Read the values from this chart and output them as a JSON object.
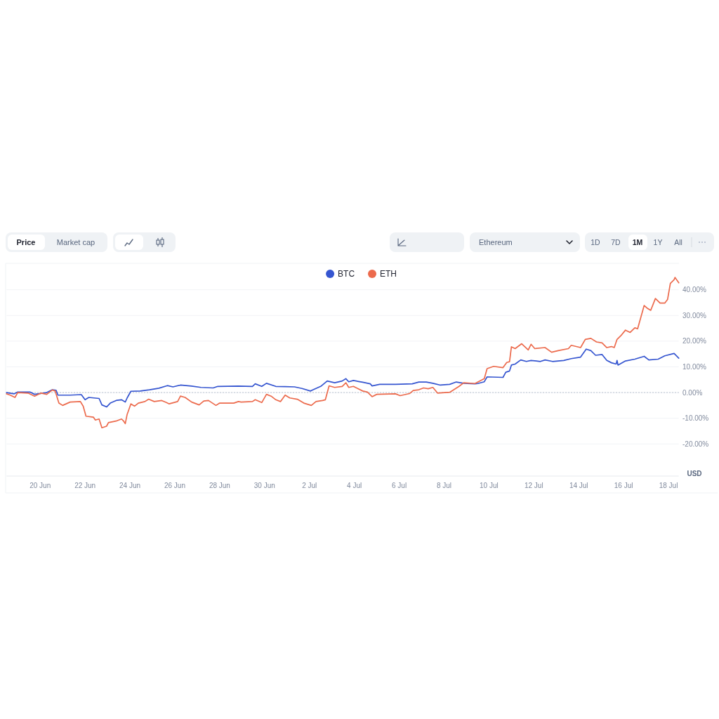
{
  "chart_data": {
    "type": "line",
    "xlim": [
      "--06-18T12:00",
      "--07-18T11:00"
    ],
    "xticks": [
      {
        "value": "--06-20",
        "label": "20 Jun"
      },
      {
        "value": "--06-22",
        "label": "22 Jun"
      },
      {
        "value": "--06-24",
        "label": "24 Jun"
      },
      {
        "value": "--06-26",
        "label": "26 Jun"
      },
      {
        "value": "--06-28",
        "label": "28 Jun"
      },
      {
        "value": "--06-30",
        "label": "30 Jun"
      },
      {
        "value": "--07-02",
        "label": "2 Jul"
      },
      {
        "value": "--07-04",
        "label": "4 Jul"
      },
      {
        "value": "--07-06",
        "label": "6 Jul"
      },
      {
        "value": "--07-08",
        "label": "8 Jul"
      },
      {
        "value": "--07-10",
        "label": "10 Jul"
      },
      {
        "value": "--07-12",
        "label": "12 Jul"
      },
      {
        "value": "--07-14",
        "label": "14 Jul"
      },
      {
        "value": "--07-16",
        "label": "16 Jul"
      },
      {
        "value": "--07-18",
        "label": "18 Jul"
      }
    ],
    "ylim": [
      -32.5,
      50.3
    ],
    "yticks": [
      {
        "value": -20,
        "label": "-20.00%"
      },
      {
        "value": -10,
        "label": "-10.00%"
      },
      {
        "value": 0,
        "label": "0.00%"
      },
      {
        "value": 10,
        "label": "10.00%"
      },
      {
        "value": 20,
        "label": "20.00%"
      },
      {
        "value": 30,
        "label": "30.00%"
      },
      {
        "value": 40,
        "label": "40.00%"
      }
    ],
    "grid": "y",
    "legend": "top",
    "ref_lines": [
      {
        "axis": "y",
        "value": 0,
        "line_style": "dotted",
        "color": "#a6b0c3"
      }
    ],
    "annotations": [
      "Price",
      "Market cap",
      "Ethereum",
      "1D",
      "7D",
      "1M",
      "1Y",
      "All",
      "USD"
    ],
    "series": [
      {
        "name": "BTC",
        "color": "#3555d0",
        "x": [
          "--06-18T12:00",
          "--06-18T20:00",
          "--06-19T00:00",
          "--06-19T13:00",
          "--06-19T18:00",
          "--06-20T07:00",
          "--06-20T13:00",
          "--06-20T17:00",
          "--06-20T19:00",
          "--06-21T08:00",
          "--06-21T20:00",
          "--06-22T00:00",
          "--06-22T04:00",
          "--06-22T15:00",
          "--06-22T18:00",
          "--06-22T23:00",
          "--06-23T03:00",
          "--06-23T10:00",
          "--06-23T15:00",
          "--06-23T19:00",
          "--06-23T21:00",
          "--06-24T01:00",
          "--06-24T11:00",
          "--06-24T21:00",
          "--06-25T07:00",
          "--06-25T16:00",
          "--06-25T22:00",
          "--06-26T06:00",
          "--06-26T18:00",
          "--06-27T04:00",
          "--06-27T17:00",
          "--06-27T22:00",
          "--06-28T20:00",
          "--06-29T11:00",
          "--06-29T14:00",
          "--06-29T21:00",
          "--06-30T02:00",
          "--06-30T12:00",
          "--06-30T22:00",
          "--07-01T08:00",
          "--07-01T16:00",
          "--07-02T01:00",
          "--07-02T04:00",
          "--07-02T12:00",
          "--07-02T19:00",
          "--07-03T03:00",
          "--07-03T11:00",
          "--07-03T15:00",
          "--07-03T18:00",
          "--07-03T23:00",
          "--07-04T09:00",
          "--07-04T17:00",
          "--07-04T19:00",
          "--07-05T03:00",
          "--07-05T20:00",
          "--07-06T14:00",
          "--07-06T21:00",
          "--07-07T05:00",
          "--07-07T12:00",
          "--07-07T20:00",
          "--07-08T06:00",
          "--07-08T13:00",
          "--07-08T21:00",
          "--07-09T09:00",
          "--07-09T12:00",
          "--07-09T19:00",
          "--07-09T22:00",
          "--07-10T15:00",
          "--07-10T18:00",
          "--07-10T22:00",
          "--07-11T00:00",
          "--07-11T04:00",
          "--07-11T10:00",
          "--07-11T16:00",
          "--07-11T21:00",
          "--07-12T07:00",
          "--07-12T12:00",
          "--07-12T20:00",
          "--07-13T08:00",
          "--07-13T16:00",
          "--07-14T02:00",
          "--07-14T08:00",
          "--07-14T13:00",
          "--07-14T18:00",
          "--07-15T01:00",
          "--07-15T06:00",
          "--07-15T11:00",
          "--07-15T16:00",
          "--07-15T17:00",
          "--07-15T18:00",
          "--07-16T02:00",
          "--07-16T12:00",
          "--07-16T22:00",
          "--07-17T03:00",
          "--07-17T13:00",
          "--07-17T20:00",
          "--07-18T06:00",
          "--07-18T11:00"
        ],
        "values": [
          0,
          -0.5,
          0.2,
          0.2,
          -0.7,
          0,
          1.1,
          0.9,
          -1.0,
          -1.0,
          -0.8,
          -2.8,
          -1.9,
          -2.3,
          -4.8,
          -5.6,
          -4.1,
          -3.0,
          -2.8,
          -3.7,
          -2.1,
          0.5,
          0.6,
          1.1,
          1.7,
          2.7,
          2.2,
          2.9,
          2.5,
          2.0,
          1.8,
          2.4,
          2.5,
          2.4,
          3.4,
          2.4,
          3.6,
          2.4,
          2.3,
          2.2,
          1.6,
          0.6,
          1.1,
          2.4,
          4.5,
          3.8,
          4.5,
          5.4,
          4.2,
          4.7,
          4.0,
          3.4,
          2.6,
          3.2,
          3.2,
          3.4,
          4.1,
          4.1,
          3.6,
          2.9,
          3.2,
          4.1,
          3.6,
          3.4,
          3.5,
          4.2,
          6.1,
          5.9,
          7.9,
          8.4,
          10.7,
          11.1,
          12.7,
          12.1,
          12.5,
          12.1,
          12.7,
          12.1,
          12.5,
          13.2,
          13.8,
          16.9,
          16.3,
          14.5,
          14.8,
          12.5,
          11.6,
          11.1,
          12.5,
          10.7,
          12.3,
          13.0,
          14.1,
          12.7,
          13.0,
          14.3,
          15.2,
          13.4
        ]
      },
      {
        "name": "ETH",
        "color": "#ec6a4c",
        "x": [
          "--06-18T12:00",
          "--06-18T16:00",
          "--06-18T21:00",
          "--06-19T00:00",
          "--06-19T11:00",
          "--06-19T18:00",
          "--06-20T01:00",
          "--06-20T07:00",
          "--06-20T13:00",
          "--06-20T16:00",
          "--06-20T20:00",
          "--06-21T00:00",
          "--06-21T08:00",
          "--06-21T19:00",
          "--06-21T22:00",
          "--06-22T01:00",
          "--06-22T09:00",
          "--06-22T11:00",
          "--06-22T15:00",
          "--06-22T18:00",
          "--06-22T23:00",
          "--06-23T01:00",
          "--06-23T10:00",
          "--06-23T15:00",
          "--06-23T17:00",
          "--06-23T19:00",
          "--06-23T21:00",
          "--06-24T01:00",
          "--06-24T05:00",
          "--06-24T09:00",
          "--06-24T16:00",
          "--06-24T20:00",
          "--06-25T02:00",
          "--06-25T10:00",
          "--06-25T15:00",
          "--06-25T18:00",
          "--06-26T03:00",
          "--06-26T06:00",
          "--06-26T11:00",
          "--06-26T18:00",
          "--06-27T02:00",
          "--06-27T07:00",
          "--06-27T12:00",
          "--06-27T20:00",
          "--06-28T00:00",
          "--06-28T15:00",
          "--06-28T20:00",
          "--06-28T23:00",
          "--06-29T11:00",
          "--06-29T14:00",
          "--06-29T21:00",
          "--06-30T02:00",
          "--06-30T07:00",
          "--06-30T12:00",
          "--06-30T17:00",
          "--06-30T22:00",
          "--07-01T03:00",
          "--07-01T11:00",
          "--07-01T18:00",
          "--07-02T02:00",
          "--07-02T07:00",
          "--07-02T14:00",
          "--07-02T17:00",
          "--07-02T21:00",
          "--07-03T03:00",
          "--07-03T11:00",
          "--07-03T15:00",
          "--07-03T18:00",
          "--07-03T23:00",
          "--07-04T09:00",
          "--07-04T14:00",
          "--07-04T19:00",
          "--07-05T00:00",
          "--07-05T20:00",
          "--07-06T01:00",
          "--07-06T11:00",
          "--07-06T15:00",
          "--07-06T21:00",
          "--07-07T02:00",
          "--07-07T07:00",
          "--07-07T12:00",
          "--07-07T17:00",
          "--07-08T06:00",
          "--07-08T16:00",
          "--07-08T21:00",
          "--07-09T09:00",
          "--07-09T19:00",
          "--07-09T22:00",
          "--07-10T05:00",
          "--07-10T15:00",
          "--07-10T19:00",
          "--07-10T22:00",
          "--07-11T00:00",
          "--07-11T04:00",
          "--07-11T11:00",
          "--07-11T18:00",
          "--07-11T21:00",
          "--07-12T01:00",
          "--07-12T12:00",
          "--07-12T19:00",
          "--07-13T02:00",
          "--07-13T13:00",
          "--07-13T16:00",
          "--07-14T02:00",
          "--07-14T07:00",
          "--07-14T13:00",
          "--07-14T19:00",
          "--07-15T01:00",
          "--07-15T06:00",
          "--07-15T11:00",
          "--07-15T14:00",
          "--07-15T17:00",
          "--07-15T21:00",
          "--07-16T02:00",
          "--07-16T07:00",
          "--07-16T12:00",
          "--07-16T15:00",
          "--07-16T22:00",
          "--07-17T01:00",
          "--07-17T05:00",
          "--07-17T10:00",
          "--07-17T15:00",
          "--07-17T20:00",
          "--07-17T23:00",
          "--07-18T02:00",
          "--07-18T06:00",
          "--07-18T07:00",
          "--07-18T11:00"
        ],
        "values": [
          -0.5,
          -1.0,
          -1.9,
          0,
          -0.2,
          -1.4,
          -0.2,
          -0.7,
          1.0,
          0.6,
          -4.1,
          -5.0,
          -3.7,
          -3.5,
          -5.3,
          -9.2,
          -9.6,
          -10.7,
          -10.3,
          -13.7,
          -13.1,
          -11.7,
          -11.0,
          -10.3,
          -11.0,
          -12.1,
          -8.5,
          -4.4,
          -5.3,
          -4.1,
          -3.5,
          -2.6,
          -3.5,
          -3.1,
          -3.9,
          -4.4,
          -3.5,
          -1.4,
          -1.9,
          -3.7,
          -4.8,
          -3.3,
          -3.1,
          -5.0,
          -4.1,
          -4.1,
          -3.5,
          -3.7,
          -3.5,
          -2.8,
          -3.9,
          -0.7,
          -1.4,
          -2.8,
          -3.5,
          -1.0,
          -2.1,
          -2.6,
          -4.1,
          -5.0,
          -3.5,
          -3.1,
          -2.8,
          2.6,
          2.0,
          2.4,
          3.8,
          2.0,
          2.4,
          0.6,
          0.2,
          -1.6,
          -0.7,
          -0.5,
          -1.2,
          -0.4,
          0.8,
          1.1,
          1.8,
          1.5,
          2.0,
          -0.2,
          0.1,
          2.4,
          3.8,
          3.5,
          5.4,
          9.3,
          10.2,
          9.7,
          11.7,
          12.0,
          17.8,
          17.1,
          19.0,
          16.6,
          18.8,
          17.1,
          17.5,
          15.7,
          16.3,
          17.1,
          18.4,
          17.5,
          20.7,
          21.1,
          19.7,
          19.3,
          17.5,
          17.9,
          17.5,
          20.7,
          22.1,
          24.3,
          23.4,
          25.2,
          24.8,
          33.9,
          32.9,
          32.0,
          36.6,
          34.8,
          34.8,
          36.2,
          42.5,
          43.9,
          44.8,
          42.7
        ]
      }
    ]
  }
}
